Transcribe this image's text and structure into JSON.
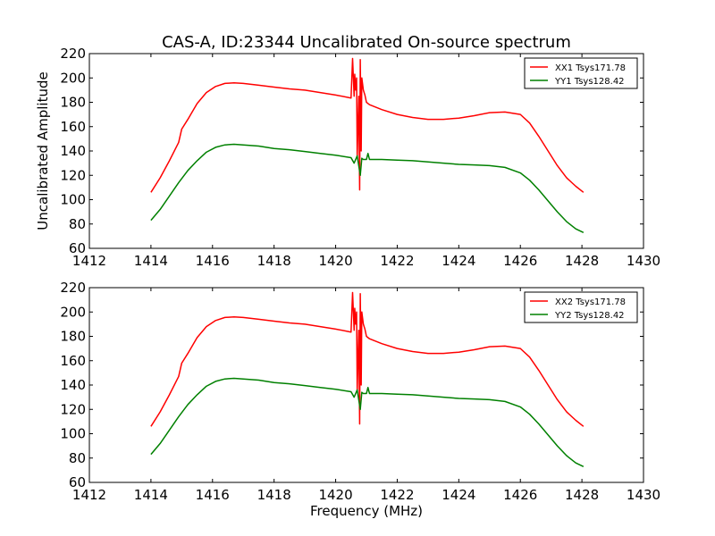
{
  "chart_data": {
    "type": "line",
    "title": "CAS-A, ID:23344 Uncalibrated On-source spectrum",
    "xlabel": "Frequency (MHz)",
    "ylabel": "Uncalibrated Amplitude",
    "xlim": [
      1412,
      1430
    ],
    "ylim": [
      60,
      220
    ],
    "x_ticks": [
      1412,
      1414,
      1416,
      1418,
      1420,
      1422,
      1424,
      1426,
      1428,
      1430
    ],
    "y_ticks": [
      60,
      80,
      100,
      120,
      140,
      160,
      180,
      200,
      220
    ],
    "grid": false,
    "legend_position": "top-right",
    "panels": [
      {
        "series": [
          {
            "name": "XX1 Tsys171.78",
            "color": "#ff0000",
            "x": [
              1414.0,
              1414.3,
              1414.6,
              1414.9,
              1415.0,
              1415.2,
              1415.5,
              1415.8,
              1416.1,
              1416.4,
              1416.7,
              1417.0,
              1417.5,
              1418.0,
              1418.5,
              1419.0,
              1419.5,
              1420.0,
              1420.5,
              1420.55,
              1420.6,
              1420.62,
              1420.65,
              1420.68,
              1420.7,
              1420.75,
              1420.78,
              1420.8,
              1420.83,
              1420.85,
              1420.9,
              1420.95,
              1421.0,
              1421.1,
              1421.3,
              1421.5,
              1422.0,
              1422.5,
              1423.0,
              1423.5,
              1424.0,
              1424.5,
              1425.0,
              1425.5,
              1426.0,
              1426.3,
              1426.6,
              1426.9,
              1427.2,
              1427.5,
              1427.8,
              1428.05
            ],
            "y": [
              106,
              118,
              132,
              147,
              158,
              166,
              179,
              188,
              193,
              195.5,
              196,
              195.5,
              194,
              192.5,
              191,
              190,
              188,
              186,
              183.5,
              216,
              185,
              203,
              190,
              200,
              135,
              185,
              108,
              215,
              140,
              200,
              190,
              186,
              180,
              178,
              176,
              174,
              170,
              167.5,
              166,
              166,
              167,
              169,
              171.5,
              172,
              170,
              163,
              152,
              140,
              128,
              118,
              111,
              106
            ]
          },
          {
            "name": "YY1 Tsys128.42",
            "color": "#008000",
            "x": [
              1414.0,
              1414.3,
              1414.6,
              1414.9,
              1415.2,
              1415.5,
              1415.8,
              1416.1,
              1416.4,
              1416.7,
              1417.0,
              1417.5,
              1418.0,
              1418.5,
              1419.0,
              1419.5,
              1420.0,
              1420.5,
              1420.6,
              1420.7,
              1420.75,
              1420.8,
              1420.85,
              1420.9,
              1421.0,
              1421.05,
              1421.1,
              1421.5,
              1422.0,
              1422.5,
              1423.0,
              1423.5,
              1424.0,
              1424.5,
              1425.0,
              1425.5,
              1426.0,
              1426.3,
              1426.6,
              1426.9,
              1427.2,
              1427.5,
              1427.8,
              1428.05
            ],
            "y": [
              83,
              92,
              103,
              114,
              124,
              132,
              139,
              143,
              145,
              145.5,
              145,
              144,
              142,
              141,
              139.5,
              138,
              136.5,
              134.5,
              130,
              136,
              128,
              120,
              134,
              133,
              133,
              138,
              133,
              133,
              132.5,
              132,
              131,
              130,
              129,
              128.5,
              128,
              126.5,
              122,
              116,
              108,
              99,
              90,
              82,
              76,
              73
            ]
          }
        ]
      },
      {
        "xlabel": "Frequency (MHz)",
        "series": [
          {
            "name": "XX2 Tsys171.78",
            "color": "#ff0000",
            "x": [
              1414.0,
              1414.3,
              1414.6,
              1414.9,
              1415.0,
              1415.2,
              1415.5,
              1415.8,
              1416.1,
              1416.4,
              1416.7,
              1417.0,
              1417.5,
              1418.0,
              1418.5,
              1419.0,
              1419.5,
              1420.0,
              1420.5,
              1420.55,
              1420.6,
              1420.62,
              1420.65,
              1420.68,
              1420.7,
              1420.75,
              1420.78,
              1420.8,
              1420.83,
              1420.85,
              1420.9,
              1420.95,
              1421.0,
              1421.1,
              1421.3,
              1421.5,
              1422.0,
              1422.5,
              1423.0,
              1423.5,
              1424.0,
              1424.5,
              1425.0,
              1425.5,
              1426.0,
              1426.3,
              1426.6,
              1426.9,
              1427.2,
              1427.5,
              1427.8,
              1428.05
            ],
            "y": [
              106,
              118,
              132,
              147,
              158,
              166,
              179,
              188,
              193,
              195.5,
              196,
              195.5,
              194,
              192.5,
              191,
              190,
              188,
              186,
              183.5,
              216,
              185,
              203,
              190,
              200,
              135,
              185,
              108,
              215,
              140,
              200,
              190,
              186,
              180,
              178,
              176,
              174,
              170,
              167.5,
              166,
              166,
              167,
              169,
              171.5,
              172,
              170,
              163,
              152,
              140,
              128,
              118,
              111,
              106
            ]
          },
          {
            "name": "YY2 Tsys128.42",
            "color": "#008000",
            "x": [
              1414.0,
              1414.3,
              1414.6,
              1414.9,
              1415.2,
              1415.5,
              1415.8,
              1416.1,
              1416.4,
              1416.7,
              1417.0,
              1417.5,
              1418.0,
              1418.5,
              1419.0,
              1419.5,
              1420.0,
              1420.5,
              1420.6,
              1420.7,
              1420.75,
              1420.8,
              1420.85,
              1420.9,
              1421.0,
              1421.05,
              1421.1,
              1421.5,
              1422.0,
              1422.5,
              1423.0,
              1423.5,
              1424.0,
              1424.5,
              1425.0,
              1425.5,
              1426.0,
              1426.3,
              1426.6,
              1426.9,
              1427.2,
              1427.5,
              1427.8,
              1428.05
            ],
            "y": [
              83,
              92,
              103,
              114,
              124,
              132,
              139,
              143,
              145,
              145.5,
              145,
              144,
              142,
              141,
              139.5,
              138,
              136.5,
              134.5,
              130,
              136,
              128,
              120,
              134,
              133,
              133,
              138,
              133,
              133,
              132.5,
              132,
              131,
              130,
              129,
              128.5,
              128,
              126.5,
              122,
              116,
              108,
              99,
              90,
              82,
              76,
              73
            ]
          }
        ]
      }
    ]
  }
}
